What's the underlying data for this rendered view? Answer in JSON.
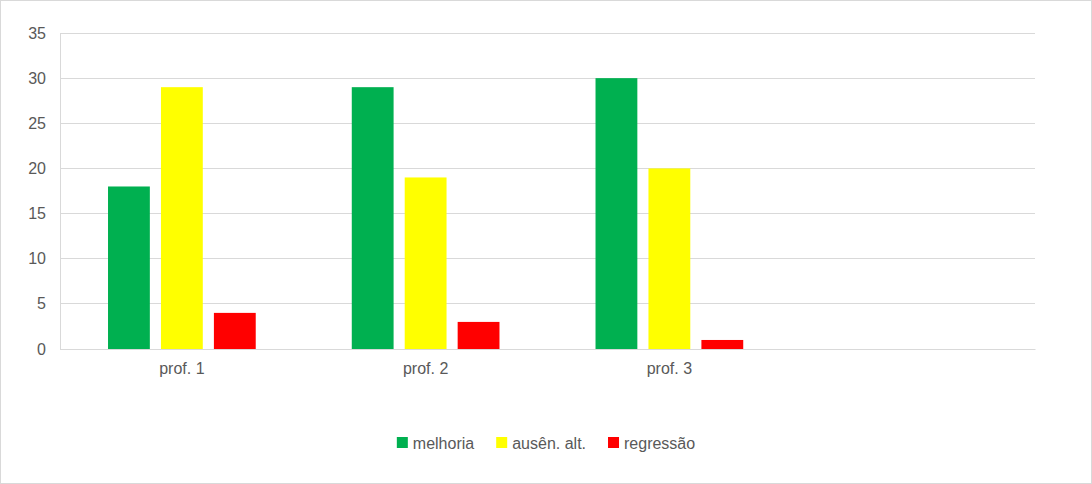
{
  "chart_data": {
    "type": "bar",
    "categories": [
      "prof. 1",
      "prof. 2",
      "prof. 3",
      null
    ],
    "series": [
      {
        "name": "melhoria",
        "color": "#00b050",
        "values": [
          18,
          29,
          30,
          null
        ]
      },
      {
        "name": "ausên. alt.",
        "color": "#ffff00",
        "values": [
          29,
          19,
          20,
          null
        ]
      },
      {
        "name": "regressão",
        "color": "#ff0000",
        "values": [
          4,
          3,
          1,
          null
        ]
      }
    ],
    "ylim": [
      0,
      35
    ],
    "yticks": [
      0,
      5,
      10,
      15,
      20,
      25,
      30,
      35
    ],
    "grid": true,
    "legend": "bottom"
  }
}
